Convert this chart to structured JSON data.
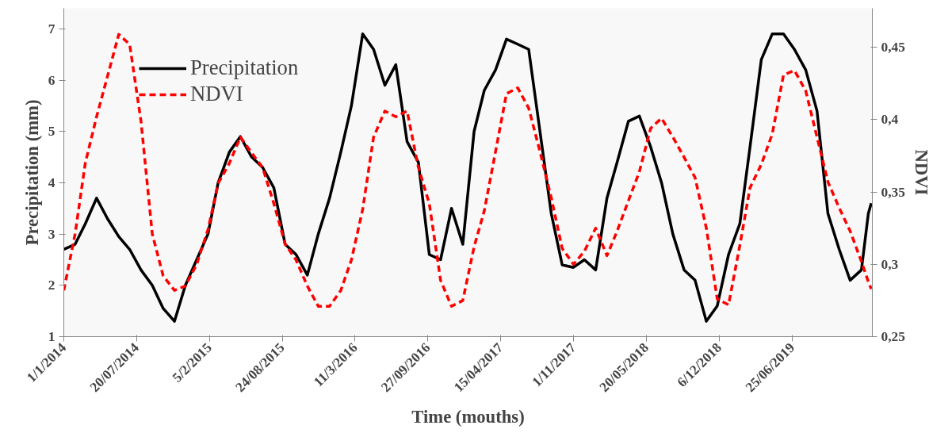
{
  "chart_data": {
    "type": "line",
    "xlabel": "Time (mouths)",
    "ylabel": "Precipitation (mm)",
    "y2label": "NDVI",
    "x": [
      "2014-01",
      "2014-02",
      "2014-03",
      "2014-04",
      "2014-05",
      "2014-06",
      "2014-07",
      "2014-08",
      "2014-09",
      "2014-10",
      "2014-11",
      "2014-12",
      "2015-01",
      "2015-02",
      "2015-03",
      "2015-04",
      "2015-05",
      "2015-06",
      "2015-07",
      "2015-08",
      "2015-09",
      "2015-10",
      "2015-11",
      "2015-12",
      "2016-01",
      "2016-02",
      "2016-03",
      "2016-04",
      "2016-05",
      "2016-06",
      "2016-07",
      "2016-08",
      "2016-09",
      "2016-10",
      "2016-11",
      "2016-12",
      "2017-01",
      "2017-02",
      "2017-03",
      "2017-04",
      "2017-05",
      "2017-06",
      "2017-07",
      "2017-08",
      "2017-09",
      "2017-10",
      "2017-11",
      "2017-12",
      "2018-01",
      "2018-02",
      "2018-03",
      "2018-04",
      "2018-05",
      "2018-06",
      "2018-07",
      "2018-08",
      "2018-09",
      "2018-10",
      "2018-11",
      "2018-12",
      "2019-01",
      "2019-02",
      "2019-03",
      "2019-04",
      "2019-05",
      "2019-06",
      "2019-07",
      "2019-08",
      "2019-09",
      "2019-10",
      "2019-11",
      "2019-12",
      "2020-01",
      "2020-01-20",
      "2020-01-28"
    ],
    "series": [
      {
        "name": "Precipitation",
        "color": "#000000",
        "line_style": "solid",
        "values": [
          2.7,
          2.8,
          3.2,
          3.7,
          3.3,
          2.95,
          2.7,
          2.3,
          2.0,
          1.55,
          1.3,
          2.0,
          2.5,
          3.0,
          4.0,
          4.6,
          4.9,
          4.5,
          4.3,
          3.9,
          2.8,
          2.6,
          2.2,
          3.0,
          3.7,
          4.6,
          5.5,
          6.9,
          6.6,
          5.9,
          6.3,
          4.8,
          4.4,
          2.6,
          2.5,
          3.5,
          2.8,
          5.0,
          5.8,
          6.2,
          6.8,
          6.7,
          6.6,
          5.0,
          3.4,
          2.4,
          2.35,
          2.5,
          2.3,
          3.7,
          4.4,
          5.2,
          5.3,
          4.7,
          4.0,
          3.0,
          2.3,
          2.1,
          1.3,
          1.6,
          2.6,
          3.2,
          4.7,
          6.4,
          6.9,
          6.9,
          6.6,
          6.2,
          5.4,
          3.4,
          2.7,
          2.1,
          2.3,
          3.4,
          3.6
        ]
      },
      {
        "name": "NDVI",
        "color": "#ff0000",
        "line_style": "dashed",
        "axis": "y2",
        "values": [
          0.282,
          0.321,
          0.37,
          0.402,
          0.43,
          0.459,
          0.452,
          0.399,
          0.321,
          0.292,
          0.282,
          0.285,
          0.3,
          0.324,
          0.356,
          0.37,
          0.388,
          0.377,
          0.367,
          0.342,
          0.314,
          0.303,
          0.285,
          0.271,
          0.271,
          0.282,
          0.303,
          0.338,
          0.388,
          0.406,
          0.402,
          0.406,
          0.367,
          0.342,
          0.289,
          0.271,
          0.275,
          0.312,
          0.337,
          0.378,
          0.418,
          0.422,
          0.408,
          0.378,
          0.346,
          0.311,
          0.3,
          0.309,
          0.325,
          0.306,
          0.323,
          0.344,
          0.364,
          0.394,
          0.401,
          0.388,
          0.374,
          0.36,
          0.325,
          0.276,
          0.272,
          0.313,
          0.353,
          0.369,
          0.39,
          0.431,
          0.434,
          0.42,
          0.388,
          0.357,
          0.339,
          0.323,
          0.302,
          0.288,
          0.283
        ]
      }
    ],
    "xlim": [
      "2014-01-01",
      "2020-01-31"
    ],
    "xticks": [
      {
        "value": "2014-01-01",
        "label": "1/1/2014"
      },
      {
        "value": "2014-07-20",
        "label": "20/07/2014"
      },
      {
        "value": "2015-02-05",
        "label": "5/2/2015"
      },
      {
        "value": "2015-08-24",
        "label": "24/08/2015"
      },
      {
        "value": "2016-03-11",
        "label": "11/3/2016"
      },
      {
        "value": "2016-09-27",
        "label": "27/09/2016"
      },
      {
        "value": "2017-04-15",
        "label": "15/04/2017"
      },
      {
        "value": "2017-11-01",
        "label": "1/11/2017"
      },
      {
        "value": "2018-05-20",
        "label": "20/05/2018"
      },
      {
        "value": "2018-12-06",
        "label": "6/12/2018"
      },
      {
        "value": "2019-06-25",
        "label": "25/06/2019"
      }
    ],
    "ylim": [
      1,
      7.4
    ],
    "yticks": [
      1,
      2,
      3,
      4,
      5,
      6,
      7
    ],
    "y2lim": [
      0.25,
      0.477
    ],
    "y2ticks": [
      {
        "value": 0.25,
        "label": "0,25"
      },
      {
        "value": 0.3,
        "label": "0,3"
      },
      {
        "value": 0.35,
        "label": "0,35"
      },
      {
        "value": 0.4,
        "label": "0,4"
      },
      {
        "value": 0.45,
        "label": "0,45"
      }
    ],
    "legend": "top left",
    "grid": false
  }
}
